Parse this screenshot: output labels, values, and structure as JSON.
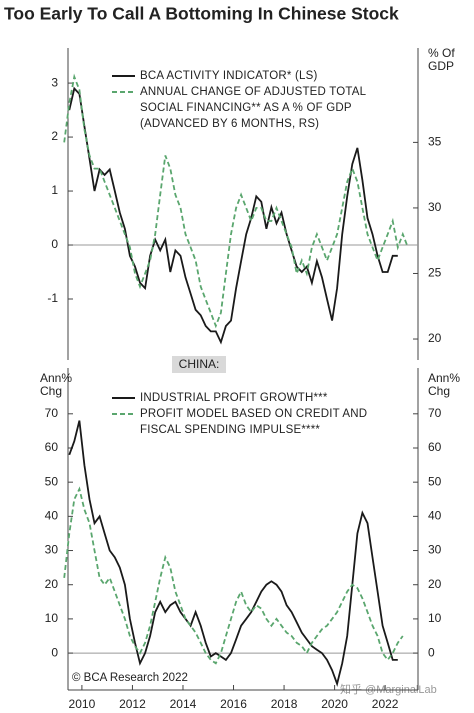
{
  "title": "Too Early To Call A Bottoming In Chinese Stock",
  "panel_label": "CHINA:",
  "footer": "© BCA Research 2022",
  "watermark": "知乎 @MarginalLab",
  "chart_data": [
    {
      "type": "line",
      "y2_label": "% Of GDP",
      "xlim": [
        2009.45,
        2023.3
      ],
      "ylim": [
        -2.13,
        3.65
      ],
      "yticks": [
        -1,
        0,
        1,
        2,
        3
      ],
      "y2lim": [
        18.4,
        42.2
      ],
      "y2ticks": [
        20,
        25,
        30,
        35
      ],
      "zero_line": true,
      "series": [
        {
          "name": "BCA ACTIVITY INDICATOR* (LS)",
          "color": "#1a1a1a",
          "dashed": false,
          "x": [
            2009.5,
            2009.7,
            2009.9,
            2010.1,
            2010.3,
            2010.5,
            2010.7,
            2010.9,
            2011.1,
            2011.3,
            2011.5,
            2011.7,
            2011.9,
            2012.1,
            2012.3,
            2012.5,
            2012.7,
            2012.9,
            2013.1,
            2013.3,
            2013.5,
            2013.7,
            2013.9,
            2014.1,
            2014.3,
            2014.5,
            2014.7,
            2014.9,
            2015.1,
            2015.3,
            2015.5,
            2015.7,
            2015.9,
            2016.1,
            2016.3,
            2016.5,
            2016.7,
            2016.9,
            2017.1,
            2017.3,
            2017.5,
            2017.7,
            2017.9,
            2018.1,
            2018.3,
            2018.5,
            2018.7,
            2018.9,
            2019.1,
            2019.3,
            2019.5,
            2019.7,
            2019.9,
            2020.1,
            2020.3,
            2020.5,
            2020.7,
            2020.9,
            2021.1,
            2021.3,
            2021.5,
            2021.7,
            2021.9,
            2022.1,
            2022.3,
            2022.5
          ],
          "values": [
            2.5,
            2.9,
            2.8,
            2.2,
            1.6,
            1.0,
            1.4,
            1.3,
            1.4,
            1.0,
            0.6,
            0.3,
            -0.2,
            -0.4,
            -0.7,
            -0.8,
            -0.2,
            0.1,
            -0.1,
            0.1,
            -0.5,
            -0.1,
            -0.2,
            -0.6,
            -0.9,
            -1.2,
            -1.3,
            -1.5,
            -1.6,
            -1.6,
            -1.8,
            -1.5,
            -1.4,
            -0.8,
            -0.3,
            0.2,
            0.5,
            0.9,
            0.8,
            0.3,
            0.7,
            0.4,
            0.6,
            0.2,
            -0.1,
            -0.4,
            -0.5,
            -0.4,
            -0.7,
            -0.3,
            -0.6,
            -1.0,
            -1.4,
            -0.8,
            0.2,
            0.9,
            1.5,
            1.8,
            1.2,
            0.5,
            0.2,
            -0.2,
            -0.5,
            -0.5,
            -0.2,
            -0.2
          ]
        },
        {
          "name": "ANNUAL CHANGE OF ADJUSTED TOTAL SOCIAL FINANCING** AS A % OF GDP (ADVANCED BY 6 MONTHS, RS)",
          "color": "#5aa66e",
          "dashed": true,
          "axis": "y2",
          "x": [
            2009.3,
            2009.5,
            2009.7,
            2009.9,
            2010.1,
            2010.3,
            2010.5,
            2010.7,
            2010.9,
            2011.1,
            2011.3,
            2011.5,
            2011.7,
            2011.9,
            2012.1,
            2012.3,
            2012.5,
            2012.7,
            2012.9,
            2013.1,
            2013.3,
            2013.5,
            2013.7,
            2013.9,
            2014.1,
            2014.3,
            2014.5,
            2014.7,
            2014.9,
            2015.1,
            2015.3,
            2015.5,
            2015.7,
            2015.9,
            2016.1,
            2016.3,
            2016.5,
            2016.7,
            2016.9,
            2017.1,
            2017.3,
            2017.5,
            2017.7,
            2017.9,
            2018.1,
            2018.3,
            2018.5,
            2018.7,
            2018.9,
            2019.1,
            2019.3,
            2019.5,
            2019.7,
            2019.9,
            2020.1,
            2020.3,
            2020.5,
            2020.7,
            2020.9,
            2021.1,
            2021.3,
            2021.5,
            2021.7,
            2021.9,
            2022.1,
            2022.3,
            2022.5,
            2022.7,
            2022.9
          ],
          "values": [
            35,
            38,
            40,
            39,
            36,
            34,
            33,
            33,
            32,
            31,
            30,
            29,
            28,
            27,
            25,
            24,
            25,
            26,
            28,
            31,
            34,
            33,
            31,
            30,
            28,
            27,
            26,
            24,
            23,
            22,
            21,
            22,
            25,
            28,
            30,
            31,
            30,
            29,
            30,
            30,
            29,
            29,
            30,
            29,
            28,
            27,
            25,
            26,
            25,
            27,
            28,
            27,
            26,
            27,
            28,
            30,
            32,
            33,
            32,
            30,
            28,
            27,
            26,
            27,
            28,
            29,
            27,
            28,
            27
          ]
        }
      ]
    },
    {
      "type": "line",
      "y_label": "Ann% Chg",
      "y2_label": "Ann% Chg",
      "xlim": [
        2009.45,
        2023.3
      ],
      "xticks": [
        2010,
        2012,
        2014,
        2016,
        2018,
        2020,
        2022
      ],
      "ylim": [
        -10.8,
        83.4
      ],
      "yticks": [
        0,
        10,
        20,
        30,
        40,
        50,
        60,
        70
      ],
      "y2lim": [
        -10.8,
        83.4
      ],
      "y2ticks": [
        0,
        10,
        20,
        30,
        40,
        50,
        60,
        70
      ],
      "zero_line": true,
      "series": [
        {
          "name": "INDUSTRIAL PROFIT GROWTH***",
          "color": "#1a1a1a",
          "dashed": false,
          "x": [
            2009.5,
            2009.7,
            2009.9,
            2010.1,
            2010.3,
            2010.5,
            2010.7,
            2010.9,
            2011.1,
            2011.3,
            2011.5,
            2011.7,
            2011.9,
            2012.1,
            2012.3,
            2012.5,
            2012.7,
            2012.9,
            2013.1,
            2013.3,
            2013.5,
            2013.7,
            2013.9,
            2014.1,
            2014.3,
            2014.5,
            2014.7,
            2014.9,
            2015.1,
            2015.3,
            2015.5,
            2015.7,
            2015.9,
            2016.1,
            2016.3,
            2016.5,
            2016.7,
            2016.9,
            2017.1,
            2017.3,
            2017.5,
            2017.7,
            2017.9,
            2018.1,
            2018.3,
            2018.5,
            2018.7,
            2018.9,
            2019.1,
            2019.3,
            2019.5,
            2019.7,
            2019.9,
            2020.1,
            2020.3,
            2020.5,
            2020.7,
            2020.9,
            2021.1,
            2021.3,
            2021.5,
            2021.7,
            2021.9,
            2022.1,
            2022.3,
            2022.5
          ],
          "values": [
            58,
            62,
            68,
            55,
            45,
            38,
            40,
            35,
            30,
            28,
            25,
            20,
            10,
            3,
            -3,
            0,
            5,
            12,
            15,
            12,
            14,
            15,
            12,
            10,
            8,
            12,
            8,
            3,
            -1,
            0,
            -1,
            -2,
            0,
            4,
            8,
            10,
            12,
            15,
            18,
            20,
            21,
            20,
            18,
            14,
            12,
            9,
            6,
            4,
            2,
            1,
            0,
            -2,
            -5,
            -9,
            -3,
            5,
            20,
            35,
            41,
            38,
            28,
            18,
            8,
            3,
            -2,
            -2
          ]
        },
        {
          "name": "PROFIT MODEL BASED ON CREDIT AND FISCAL SPENDING IMPULSE****",
          "color": "#5aa66e",
          "dashed": true,
          "x": [
            2009.3,
            2009.5,
            2009.7,
            2009.9,
            2010.1,
            2010.3,
            2010.5,
            2010.7,
            2010.9,
            2011.1,
            2011.3,
            2011.5,
            2011.7,
            2011.9,
            2012.1,
            2012.3,
            2012.5,
            2012.7,
            2012.9,
            2013.1,
            2013.3,
            2013.5,
            2013.7,
            2013.9,
            2014.1,
            2014.3,
            2014.5,
            2014.7,
            2014.9,
            2015.1,
            2015.3,
            2015.5,
            2015.7,
            2015.9,
            2016.1,
            2016.3,
            2016.5,
            2016.7,
            2016.9,
            2017.1,
            2017.3,
            2017.5,
            2017.7,
            2017.9,
            2018.1,
            2018.3,
            2018.5,
            2018.7,
            2018.9,
            2019.1,
            2019.3,
            2019.5,
            2019.7,
            2019.9,
            2020.1,
            2020.3,
            2020.5,
            2020.7,
            2020.9,
            2021.1,
            2021.3,
            2021.5,
            2021.7,
            2021.9,
            2022.1,
            2022.3,
            2022.5,
            2022.7
          ],
          "values": [
            22,
            35,
            45,
            48,
            42,
            38,
            30,
            22,
            20,
            22,
            18,
            14,
            10,
            5,
            2,
            0,
            3,
            8,
            15,
            22,
            28,
            25,
            18,
            14,
            10,
            8,
            6,
            3,
            0,
            -2,
            -3,
            0,
            5,
            10,
            15,
            18,
            14,
            12,
            14,
            13,
            10,
            8,
            10,
            8,
            6,
            5,
            3,
            2,
            0,
            3,
            5,
            7,
            8,
            10,
            12,
            15,
            18,
            20,
            19,
            16,
            12,
            8,
            5,
            0,
            -2,
            0,
            3,
            5
          ]
        }
      ]
    }
  ]
}
